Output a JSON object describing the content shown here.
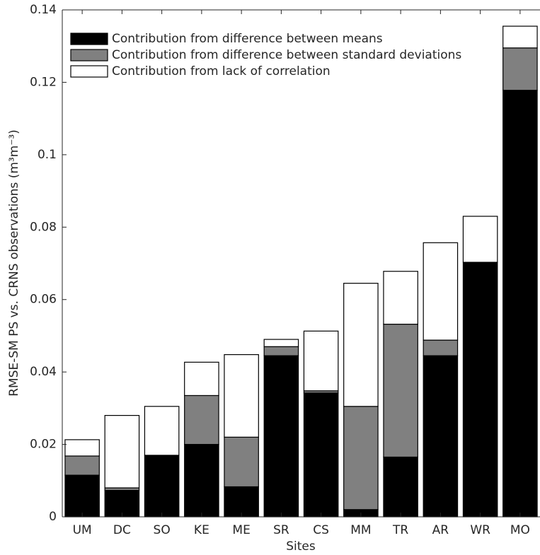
{
  "chart_data": {
    "type": "stacked-bar",
    "y_label": "RMSE-SM PS vs. CRNS observations (m³m⁻³)",
    "x_label": "Sites",
    "categories": [
      "UM",
      "DC",
      "SO",
      "KE",
      "ME",
      "SR",
      "CS",
      "MM",
      "TR",
      "AR",
      "WR",
      "MO"
    ],
    "series": [
      {
        "name": "Contribution from difference between means",
        "color": "#000000",
        "values": [
          0.0115,
          0.0073,
          0.017,
          0.02,
          0.0083,
          0.0445,
          0.0342,
          0.002,
          0.0165,
          0.0445,
          0.0703,
          0.1178
        ]
      },
      {
        "name": "Contribution from difference between standard deviations",
        "color": "#808080",
        "values": [
          0.0053,
          0.0007,
          0,
          0.0135,
          0.0137,
          0.0025,
          0.0006,
          0.0285,
          0.0367,
          0.0043,
          0,
          0.0117
        ]
      },
      {
        "name": "Contribution from lack of correlation",
        "color": "#ffffff",
        "values": [
          0.0045,
          0.02,
          0.0135,
          0.0092,
          0.0228,
          0.002,
          0.0165,
          0.034,
          0.0146,
          0.0269,
          0.0127,
          0.006
        ]
      }
    ],
    "ylim": [
      0,
      0.14
    ],
    "yticks": [
      0,
      0.02,
      0.04,
      0.06,
      0.08,
      0.1,
      0.12,
      0.14
    ]
  }
}
